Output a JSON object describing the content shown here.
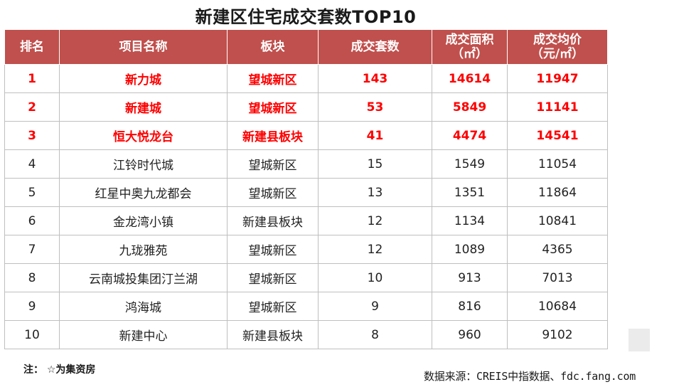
{
  "title": "新建区住宅成交套数TOP10",
  "table": {
    "headers": [
      {
        "line1": "排名",
        "line2": ""
      },
      {
        "line1": "项目名称",
        "line2": ""
      },
      {
        "line1": "板块",
        "line2": ""
      },
      {
        "line1": "成交套数",
        "line2": ""
      },
      {
        "line1": "成交面积",
        "line2": "（㎡）"
      },
      {
        "line1": "成交均价",
        "line2": "（元/㎡）"
      }
    ],
    "rows": [
      {
        "rank": "1",
        "name": "新力城",
        "block": "望城新区",
        "units": "143",
        "area": "14614",
        "price": "11947"
      },
      {
        "rank": "2",
        "name": "新建城",
        "block": "望城新区",
        "units": "53",
        "area": "5849",
        "price": "11141"
      },
      {
        "rank": "3",
        "name": "恒大悦龙台",
        "block": "新建县板块",
        "units": "41",
        "area": "4474",
        "price": "14541"
      },
      {
        "rank": "4",
        "name": "江铃时代城",
        "block": "望城新区",
        "units": "15",
        "area": "1549",
        "price": "11054"
      },
      {
        "rank": "5",
        "name": "红星中奥九龙都会",
        "block": "望城新区",
        "units": "13",
        "area": "1351",
        "price": "11864"
      },
      {
        "rank": "6",
        "name": "金龙湾小镇",
        "block": "新建县板块",
        "units": "12",
        "area": "1134",
        "price": "10841"
      },
      {
        "rank": "7",
        "name": "九珑雅苑",
        "block": "望城新区",
        "units": "12",
        "area": "1089",
        "price": "4365"
      },
      {
        "rank": "8",
        "name": "云南城投集团汀兰湖",
        "block": "望城新区",
        "units": "10",
        "area": "913",
        "price": "7013"
      },
      {
        "rank": "9",
        "name": "鸿海城",
        "block": "望城新区",
        "units": "9",
        "area": "816",
        "price": "10684"
      },
      {
        "rank": "10",
        "name": "新建中心",
        "block": "新建县板块",
        "units": "8",
        "area": "960",
        "price": "9102"
      }
    ]
  },
  "note": "注： ☆为集资房",
  "source": "数据来源：CREIS中指数据、fdc.fang.com",
  "colors": {
    "header_bg": "#c0504d",
    "header_text": "#ffffff",
    "highlight_text": "#ff0000",
    "border": "#bfbfbf"
  }
}
